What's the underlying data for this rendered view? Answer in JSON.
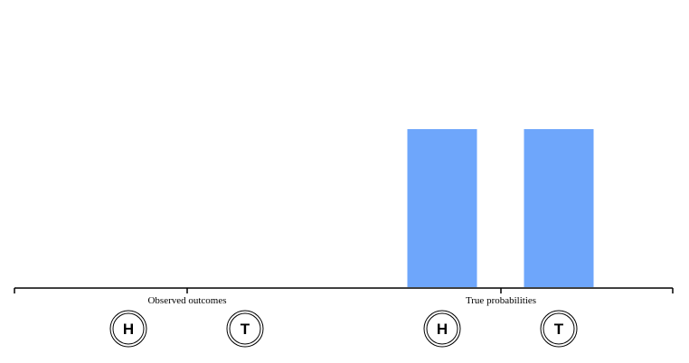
{
  "chart_data": {
    "type": "bar",
    "groups": [
      {
        "label": "Observed outcomes",
        "categories": [
          "H",
          "T"
        ],
        "values": [
          0,
          0
        ]
      },
      {
        "label": "True probabilities",
        "categories": [
          "H",
          "T"
        ],
        "values": [
          0.5,
          0.5
        ]
      }
    ],
    "ylim": [
      0,
      1
    ],
    "bar_color": "#6ea6fb",
    "grid": false,
    "legend": "none"
  }
}
